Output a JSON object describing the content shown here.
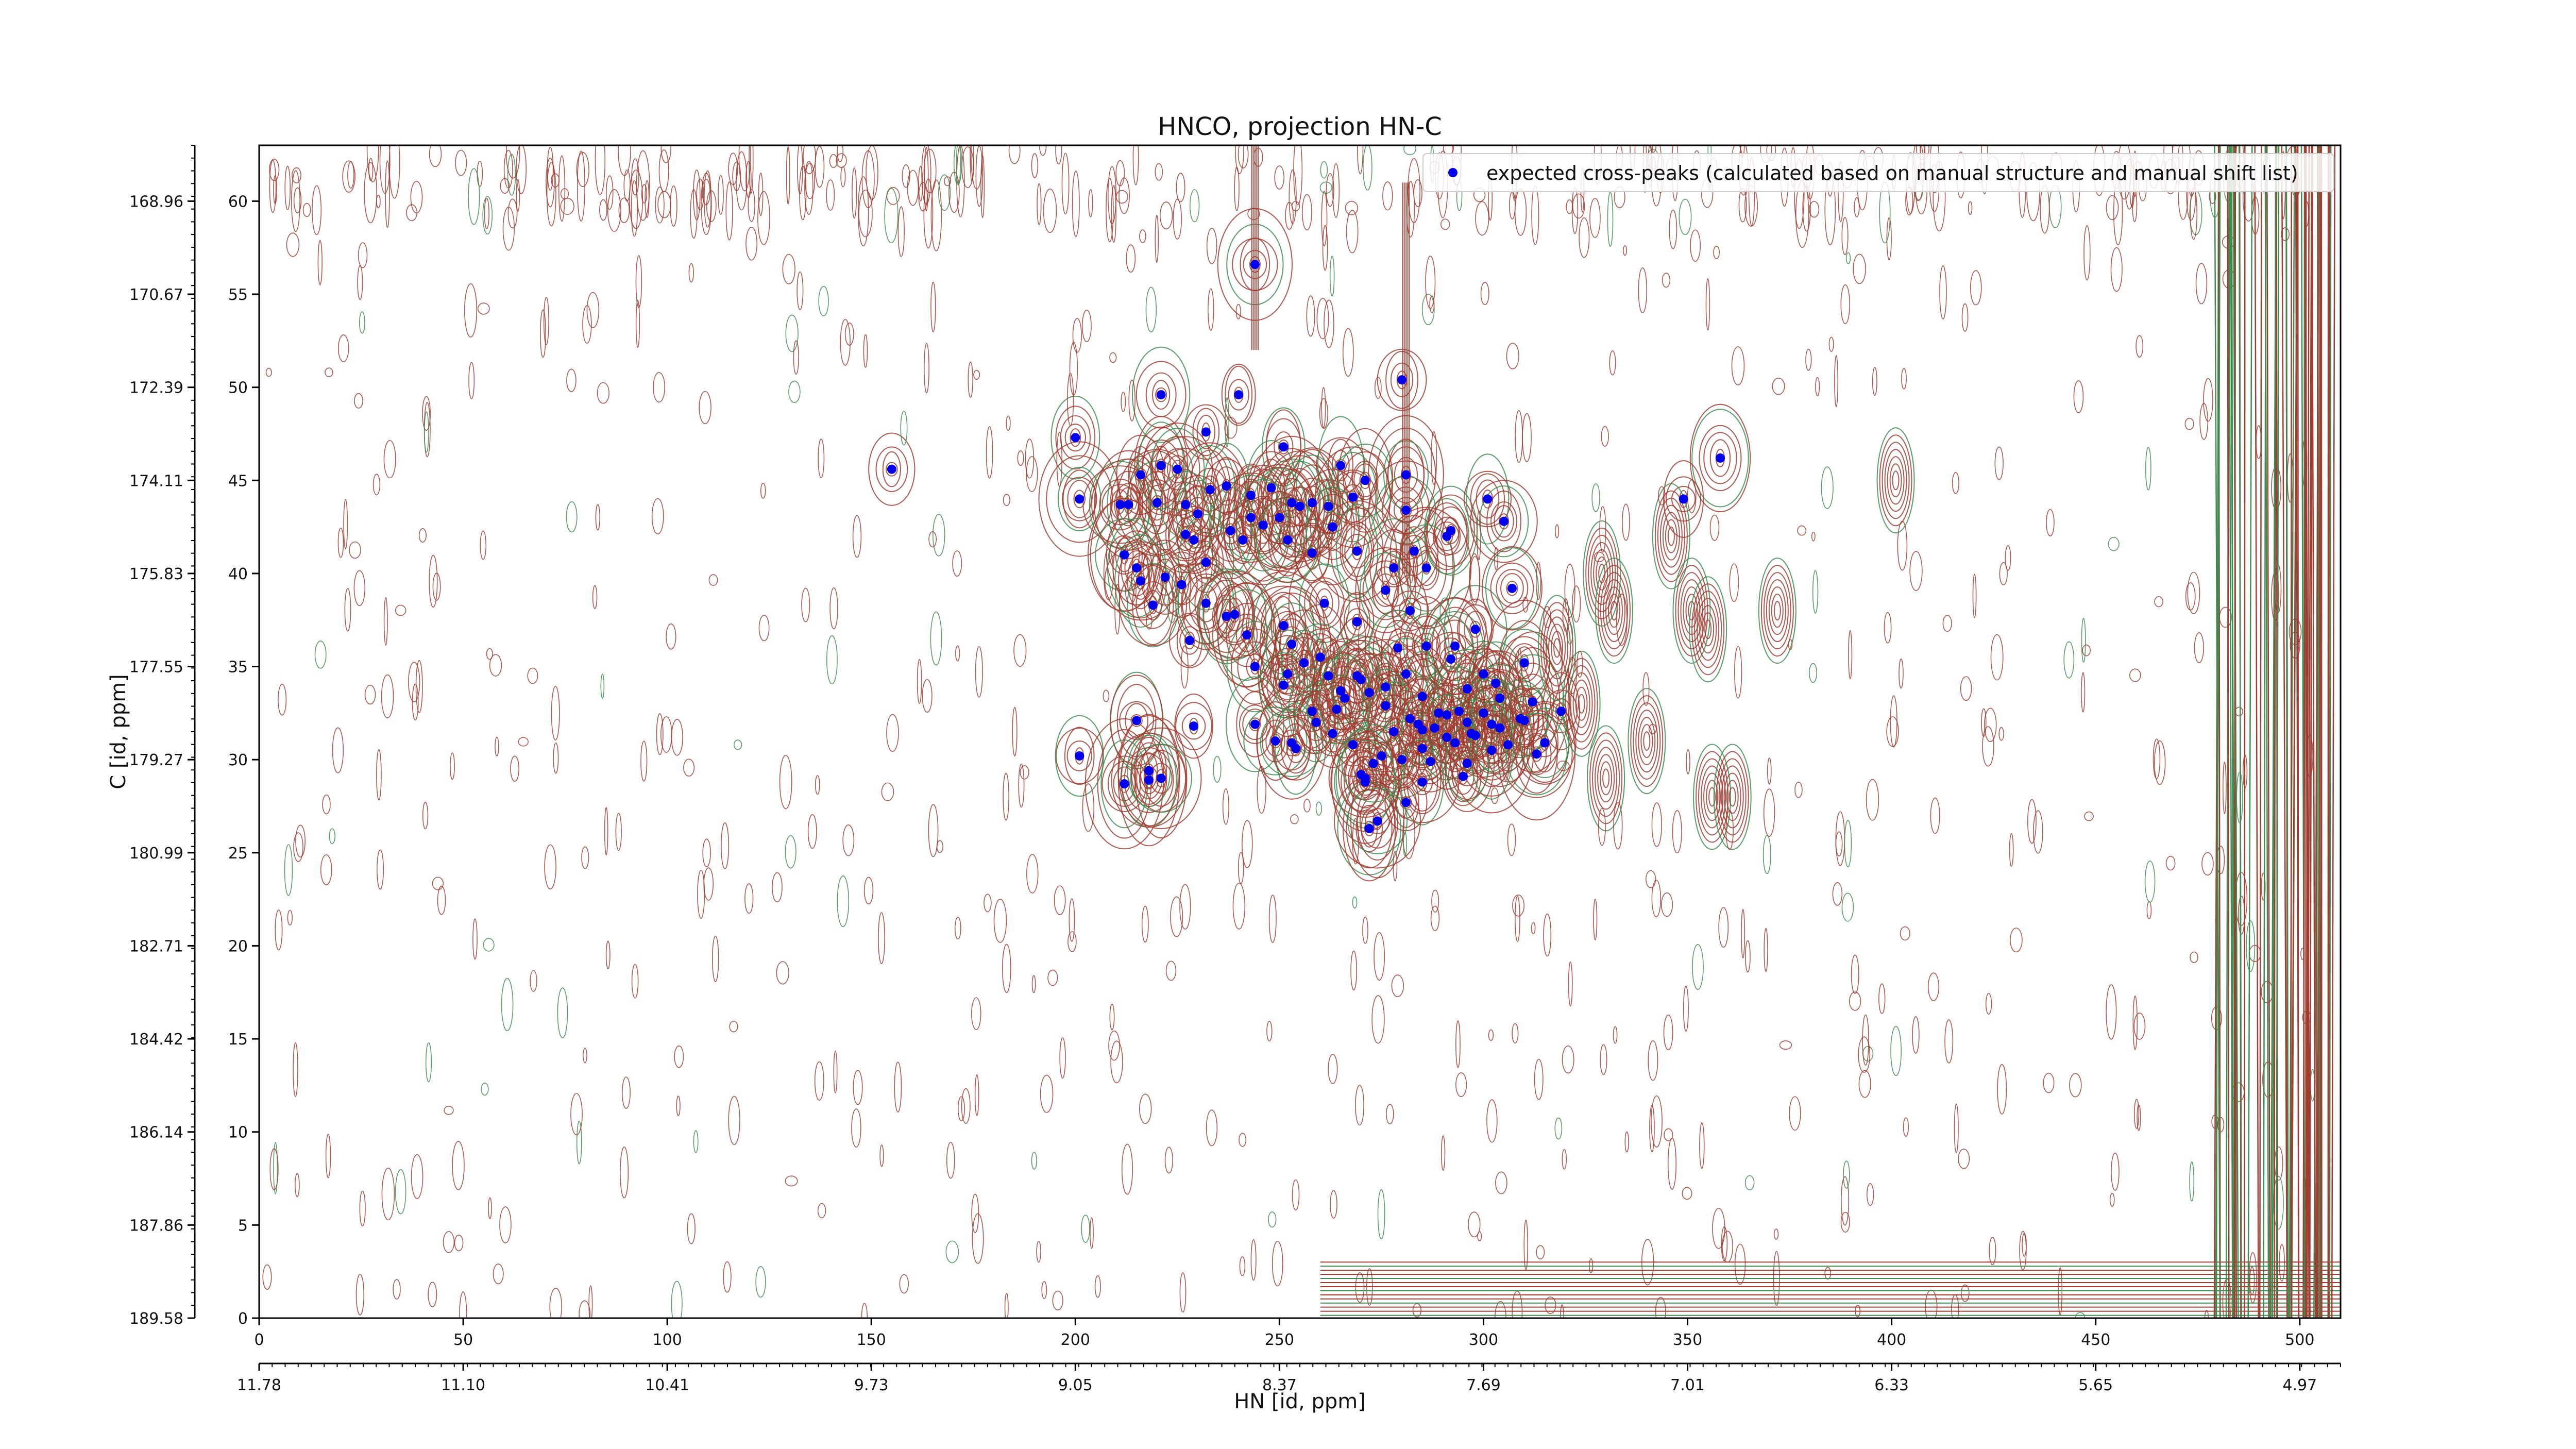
{
  "chart_data": {
    "type": "scatter",
    "title": "HNCO, projection HN-C",
    "xlabel": "HN [id, ppm]",
    "ylabel": "C [id, ppm]",
    "xlim": [
      0,
      510
    ],
    "ylim": [
      0,
      63
    ],
    "x_ticks": [
      0,
      50,
      100,
      150,
      200,
      250,
      300,
      350,
      400,
      450,
      500
    ],
    "y_ticks": [
      0,
      5,
      10,
      15,
      20,
      25,
      30,
      35,
      40,
      45,
      50,
      55,
      60
    ],
    "ppm_x_ticks": [
      "11.78",
      "11.10",
      "10.41",
      "9.73",
      "9.05",
      "8.37",
      "7.69",
      "7.01",
      "6.33",
      "5.65",
      "4.97"
    ],
    "ppm_y_ticks": [
      "189.58",
      "187.86",
      "186.14",
      "184.42",
      "182.71",
      "180.99",
      "179.27",
      "177.55",
      "175.83",
      "174.11",
      "172.39",
      "170.67",
      "168.96"
    ],
    "legend": {
      "position": "top-right",
      "marker": "blue filled circle"
    },
    "grid": false,
    "colors": {
      "expected_peaks": "#0000ee",
      "positive_contours": "#a03c30",
      "negative_contours": "#3c8c50"
    },
    "series": [
      {
        "name": "expected cross-peaks (calculated based on manual structure and manual shift list)",
        "points": [
          [
            155,
            45.6
          ],
          [
            244,
            56.6
          ],
          [
            280,
            50.4
          ],
          [
            221,
            49.6
          ],
          [
            240,
            49.6
          ],
          [
            200,
            47.3
          ],
          [
            358,
            46.2
          ],
          [
            251,
            46.8
          ],
          [
            232,
            47.6
          ],
          [
            201,
            44.0
          ],
          [
            211,
            43.7
          ],
          [
            213,
            43.7
          ],
          [
            216,
            45.3
          ],
          [
            220,
            43.8
          ],
          [
            221,
            45.8
          ],
          [
            225,
            45.6
          ],
          [
            227,
            43.7
          ],
          [
            230,
            43.2
          ],
          [
            233,
            44.5
          ],
          [
            237,
            44.7
          ],
          [
            243,
            44.2
          ],
          [
            248,
            44.6
          ],
          [
            253,
            43.8
          ],
          [
            255,
            43.6
          ],
          [
            258,
            43.8
          ],
          [
            262,
            43.6
          ],
          [
            265,
            45.8
          ],
          [
            268,
            44.1
          ],
          [
            271,
            45.0
          ],
          [
            281,
            43.4
          ],
          [
            281,
            45.3
          ],
          [
            291,
            42.0
          ],
          [
            292,
            42.3
          ],
          [
            301,
            44.0
          ],
          [
            305,
            42.8
          ],
          [
            349,
            44.0
          ],
          [
            212,
            41.0
          ],
          [
            215,
            40.3
          ],
          [
            216,
            39.6
          ],
          [
            222,
            39.8
          ],
          [
            227,
            42.1
          ],
          [
            229,
            41.8
          ],
          [
            232,
            40.6
          ],
          [
            238,
            42.3
          ],
          [
            241,
            41.8
          ],
          [
            243,
            43.0
          ],
          [
            246,
            42.6
          ],
          [
            250,
            43.0
          ],
          [
            252,
            41.8
          ],
          [
            258,
            41.1
          ],
          [
            263,
            42.5
          ],
          [
            269,
            41.2
          ],
          [
            278,
            40.3
          ],
          [
            283,
            41.2
          ],
          [
            286,
            40.3
          ],
          [
            219,
            38.3
          ],
          [
            226,
            39.4
          ],
          [
            228,
            36.4
          ],
          [
            232,
            38.4
          ],
          [
            237,
            37.7
          ],
          [
            239,
            37.8
          ],
          [
            242,
            36.7
          ],
          [
            251,
            37.2
          ],
          [
            261,
            38.4
          ],
          [
            269,
            37.4
          ],
          [
            276,
            39.1
          ],
          [
            282,
            38.0
          ],
          [
            286,
            36.1
          ],
          [
            293,
            36.1
          ],
          [
            298,
            37.0
          ],
          [
            307,
            39.2
          ],
          [
            244,
            35.0
          ],
          [
            252,
            34.6
          ],
          [
            253,
            36.2
          ],
          [
            256,
            35.2
          ],
          [
            260,
            35.5
          ],
          [
            262,
            34.5
          ],
          [
            265,
            33.7
          ],
          [
            269,
            34.5
          ],
          [
            270,
            34.3
          ],
          [
            276,
            33.9
          ],
          [
            279,
            36.0
          ],
          [
            281,
            34.6
          ],
          [
            285,
            33.4
          ],
          [
            292,
            35.4
          ],
          [
            296,
            33.8
          ],
          [
            300,
            34.6
          ],
          [
            303,
            34.1
          ],
          [
            304,
            33.3
          ],
          [
            310,
            35.2
          ],
          [
            312,
            33.1
          ],
          [
            244,
            31.9
          ],
          [
            251,
            34.0
          ],
          [
            258,
            32.6
          ],
          [
            264,
            32.7
          ],
          [
            272,
            33.6
          ],
          [
            276,
            32.9
          ],
          [
            278,
            31.5
          ],
          [
            282,
            32.2
          ],
          [
            285,
            31.6
          ],
          [
            289,
            32.5
          ],
          [
            291,
            32.4
          ],
          [
            294,
            32.6
          ],
          [
            296,
            32.0
          ],
          [
            298,
            31.3
          ],
          [
            302,
            31.9
          ],
          [
            304,
            31.7
          ],
          [
            309,
            32.2
          ],
          [
            319,
            32.6
          ],
          [
            215,
            32.1
          ],
          [
            229,
            31.8
          ],
          [
            249,
            31.0
          ],
          [
            253,
            30.9
          ],
          [
            259,
            32.0
          ],
          [
            263,
            31.4
          ],
          [
            266,
            33.3
          ],
          [
            285,
            30.6
          ],
          [
            288,
            31.7
          ],
          [
            291,
            31.2
          ],
          [
            293,
            30.9
          ],
          [
            297,
            31.4
          ],
          [
            300,
            32.5
          ],
          [
            306,
            30.8
          ],
          [
            310,
            32.1
          ],
          [
            315,
            30.9
          ],
          [
            254,
            30.6
          ],
          [
            268,
            30.8
          ],
          [
            270,
            29.2
          ],
          [
            275,
            30.2
          ],
          [
            280,
            30.0
          ],
          [
            284,
            31.9
          ],
          [
            287,
            29.9
          ],
          [
            295,
            29.1
          ],
          [
            313,
            30.3
          ],
          [
            201,
            30.2
          ],
          [
            212,
            28.7
          ],
          [
            218,
            28.9
          ],
          [
            218,
            29.4
          ],
          [
            221,
            29.0
          ],
          [
            271,
            28.8
          ],
          [
            285,
            28.8
          ],
          [
            281,
            27.7
          ],
          [
            271,
            29.0
          ],
          [
            272,
            26.3
          ],
          [
            274,
            26.7
          ],
          [
            273,
            29.8
          ],
          [
            296,
            29.8
          ],
          [
            302,
            30.5
          ]
        ]
      }
    ]
  }
}
